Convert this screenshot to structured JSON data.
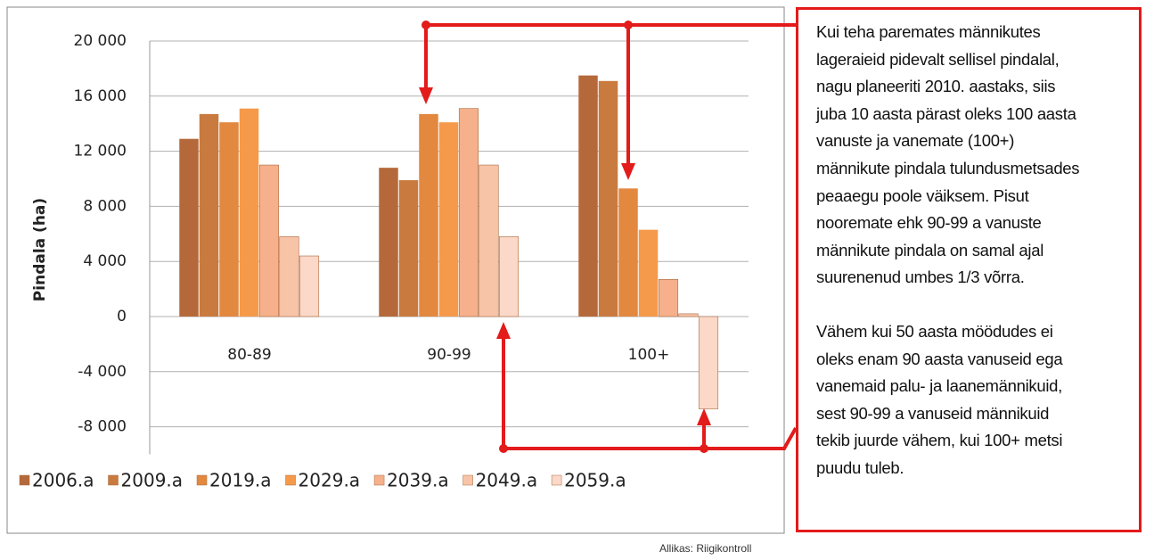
{
  "chart_data": {
    "type": "bar",
    "ylabel": "Pindala (ha)",
    "categories": [
      "80-89",
      "90-99",
      "100+"
    ],
    "series": [
      {
        "name": "2006.a",
        "color": "#b5693a",
        "values": [
          12900,
          10800,
          17500
        ]
      },
      {
        "name": "2009.a",
        "color": "#c97a3f",
        "values": [
          14700,
          9900,
          17100
        ]
      },
      {
        "name": "2019.a",
        "color": "#e3883f",
        "values": [
          14100,
          14700,
          9300
        ]
      },
      {
        "name": "2029.a",
        "color": "#f59a4a",
        "values": [
          15100,
          14100,
          6300
        ]
      },
      {
        "name": "2039.a",
        "color": "#f6b08b",
        "values": [
          11000,
          15100,
          2700
        ]
      },
      {
        "name": "2049.a",
        "color": "#f8c4a8",
        "values": [
          5800,
          11000,
          200
        ]
      },
      {
        "name": "2059.a",
        "color": "#fbd8c7",
        "values": [
          4400,
          5800,
          -6700
        ]
      }
    ],
    "ylim": [
      -10000,
      20000
    ],
    "yticks": [
      {
        "value": -8000,
        "label": "-8 000"
      },
      {
        "value": -4000,
        "label": "-4 000"
      },
      0,
      {
        "value": 4000,
        "label": "4 000"
      },
      {
        "value": 8000,
        "label": "8 000"
      },
      {
        "value": 12000,
        "label": "12 000"
      },
      {
        "value": 16000,
        "label": "16 000"
      },
      {
        "value": 20000,
        "label": "20 000"
      }
    ],
    "grid": true,
    "legend": "bottom"
  },
  "annotation": {
    "paragraphs": [
      [
        "Kui teha paremates männikutes",
        "lageraieid pidevalt sellisel pindalal,",
        "nagu planeeriti 2010. aastaks, siis",
        "juba 10 aasta pärast oleks 100 aasta",
        "vanuste ja vanemate (100+)",
        "männikute pindala tulundusmetsades",
        "peaaegu poole väiksem. Pisut",
        "nooremate ehk 90-99 a vanuste",
        "männikute pindala on samal ajal",
        "suurenenud umbes 1/3 võrra."
      ],
      [
        "Vähem kui 50 aasta möödudes ei",
        "oleks enam 90 aasta vanuseid ega",
        "vanemaid palu- ja laanemännikuid,",
        "sest 90-99 a vanuseid männikuid",
        "tekib juurde vähem, kui 100+ metsi",
        "puudu tuleb."
      ]
    ]
  },
  "source": "Allikas: Riigikontroll"
}
